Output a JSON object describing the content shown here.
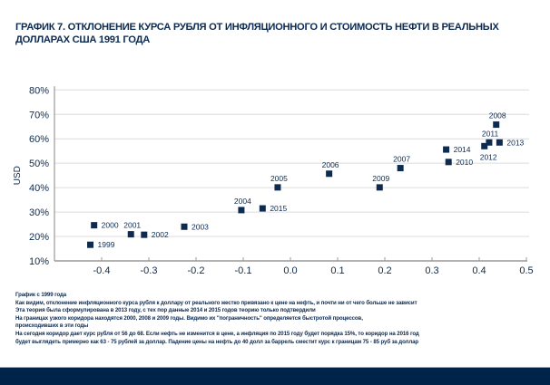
{
  "title": "ГРАФИК 7. ОТКЛОНЕНИЕ КУРСА РУБЛЯ ОТ ИНФЛЯЦИОННОГО И СТОИМОСТЬ НЕФТИ  В РЕАЛЬНЫХ ДОЛЛАРАХ США 1991 ГОДА",
  "notes": [
    "График с 1999 года",
    "Как видим, отклонение инфляционного курса рубля к доллару от реального жестко привязано к цене на нефть, и почти ни от чего больше не зависит",
    "Эта теория была сформулирована в 2013 году, с тех пор данные 2014 и 2015 годов теорию только подтвердили",
    "На границах узкого коридора находятся 2000, 2008 и 2009 годы. Видимо их \"пограничность\" определяется быстротой процессов,",
    "происходивших в эти годы",
    "На сегодня коридор дает курс рубля от 56 до 68. Если нефть не изменится в цене, а инфляция по 2015 году будет порядка 15%, то коридор на 2016 год",
    "будет выглядеть примерно как 63 -  75 рублей за доллар. Падение цены на нефть до 40 долл за баррель сместит курс к границам 75 - 85 руб за доллар"
  ],
  "colors": {
    "marker": "#0d2a4f",
    "grid": "#dcdcdc",
    "axis": "#999999",
    "footer": "#00234a"
  },
  "chart_data": {
    "type": "scatter",
    "title": "ГРАФИК 7. ОТКЛОНЕНИЕ КУРСА РУБЛЯ ОТ ИНФЛЯЦИОННОГО И СТОИМОСТЬ НЕФТИ  В РЕАЛЬНЫХ ДОЛЛАРАХ США 1991 ГОДА",
    "xlabel": "",
    "ylabel": "USD",
    "xlim": [
      -0.5,
      0.5
    ],
    "ylim": [
      10,
      80
    ],
    "xticks": [
      "-0.4",
      "-0.3",
      "-0.2",
      "-0.1",
      "0.0",
      "0.1",
      "0.2",
      "0.3",
      "0.4",
      "0.5"
    ],
    "xtick_values": [
      -0.4,
      -0.3,
      -0.2,
      -0.1,
      0.0,
      0.1,
      0.2,
      0.3,
      0.4,
      0.5
    ],
    "yticks": [
      "10%",
      "20%",
      "30%",
      "40%",
      "50%",
      "60%",
      "70%",
      "80%"
    ],
    "ytick_values": [
      10,
      20,
      30,
      40,
      50,
      60,
      70,
      80
    ],
    "grid": "horizontal",
    "points": [
      {
        "label": "1999",
        "x": -0.424,
        "y": 16.6,
        "pos": "right"
      },
      {
        "label": "2000",
        "x": -0.416,
        "y": 24.6,
        "pos": "right"
      },
      {
        "label": "2001",
        "x": -0.338,
        "y": 20.9,
        "pos": "top"
      },
      {
        "label": "2002",
        "x": -0.31,
        "y": 20.7,
        "pos": "right"
      },
      {
        "label": "2003",
        "x": -0.225,
        "y": 24.0,
        "pos": "right"
      },
      {
        "label": "2004",
        "x": -0.104,
        "y": 30.8,
        "pos": "top"
      },
      {
        "label": "2005",
        "x": -0.027,
        "y": 40.1,
        "pos": "top"
      },
      {
        "label": "2006",
        "x": 0.082,
        "y": 45.7,
        "pos": "top"
      },
      {
        "label": "2007",
        "x": 0.233,
        "y": 48.0,
        "pos": "top"
      },
      {
        "label": "2008",
        "x": 0.436,
        "y": 65.8,
        "pos": "top"
      },
      {
        "label": "2009",
        "x": 0.189,
        "y": 40.1,
        "pos": "top"
      },
      {
        "label": "2010",
        "x": 0.335,
        "y": 50.5,
        "pos": "right"
      },
      {
        "label": "2011",
        "x": 0.421,
        "y": 58.5,
        "pos": "top"
      },
      {
        "label": "2012",
        "x": 0.411,
        "y": 57.0,
        "pos": "bottom"
      },
      {
        "label": "2013",
        "x": 0.443,
        "y": 58.5,
        "pos": "right"
      },
      {
        "label": "2014",
        "x": 0.33,
        "y": 55.6,
        "pos": "right"
      },
      {
        "label": "2015",
        "x": -0.059,
        "y": 31.5,
        "pos": "right"
      }
    ]
  }
}
